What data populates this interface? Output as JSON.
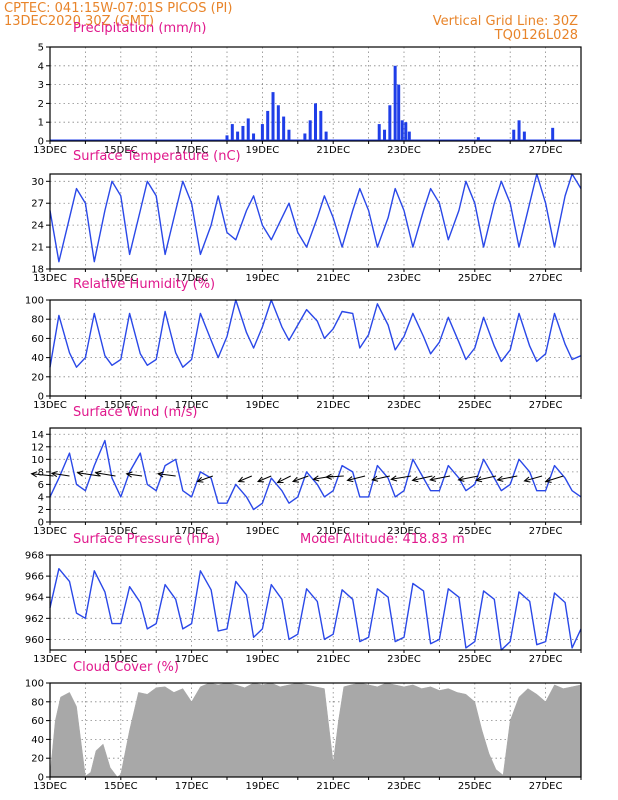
{
  "header": {
    "line1_left": "CPTEC:   041:15W-07:01S   PICOS (PI)",
    "line2_left": "13DEC2020  30Z (GMT)",
    "line1_right": "Vertical Grid Line: 30Z",
    "line2_right": "TQ0126L028"
  },
  "colors": {
    "line": "#2a48e8",
    "bar": "#1f3ee8",
    "cloud": "#a8a8a8",
    "arrow": "#000000",
    "title": "#e0188c",
    "header": "#e8842a",
    "grid": "#888888"
  },
  "x_axis": {
    "labels": [
      "13DEC",
      "15DEC",
      "17DEC",
      "19DEC",
      "21DEC",
      "23DEC",
      "25DEC",
      "27DEC"
    ],
    "range_days": [
      13,
      28
    ]
  },
  "chart_data": [
    {
      "id": "precip",
      "type": "bar",
      "title": "Precipitation (mm/h)",
      "ylim": [
        0,
        5
      ],
      "yticks": [
        0,
        1,
        2,
        3,
        4,
        5
      ],
      "x_unit": "day of December 2020",
      "x": [
        18.0,
        18.15,
        18.3,
        18.45,
        18.6,
        18.75,
        19.0,
        19.15,
        19.3,
        19.45,
        19.6,
        19.75,
        20.2,
        20.35,
        20.5,
        20.65,
        20.8,
        22.3,
        22.45,
        22.6,
        22.75,
        22.85,
        22.95,
        23.05,
        23.15,
        25.1,
        26.1,
        26.25,
        26.4,
        27.2
      ],
      "values": [
        0.3,
        0.9,
        0.5,
        0.8,
        1.2,
        0.4,
        0.9,
        1.6,
        2.6,
        1.9,
        1.3,
        0.6,
        0.4,
        1.1,
        2.0,
        1.6,
        0.5,
        0.9,
        0.6,
        1.9,
        4.0,
        3.0,
        1.1,
        1.0,
        0.5,
        0.2,
        0.6,
        1.1,
        0.5,
        0.7
      ]
    },
    {
      "id": "temp",
      "type": "line",
      "title": "Surface Temperature (nC)",
      "ylim": [
        18,
        31
      ],
      "yticks": [
        18,
        21,
        24,
        27,
        30
      ],
      "x_unit": "day of December 2020",
      "x": [
        13.0,
        13.25,
        13.55,
        13.75,
        14.0,
        14.25,
        14.55,
        14.75,
        15.0,
        15.25,
        15.55,
        15.75,
        16.0,
        16.25,
        16.55,
        16.75,
        17.0,
        17.25,
        17.55,
        17.75,
        18.0,
        18.25,
        18.55,
        18.75,
        19.0,
        19.25,
        19.55,
        19.75,
        20.0,
        20.25,
        20.55,
        20.75,
        21.0,
        21.25,
        21.55,
        21.75,
        22.0,
        22.25,
        22.55,
        22.75,
        23.0,
        23.25,
        23.55,
        23.75,
        24.0,
        24.25,
        24.55,
        24.75,
        25.0,
        25.25,
        25.55,
        25.75,
        26.0,
        26.25,
        26.55,
        26.75,
        27.0,
        27.25,
        27.55,
        27.75,
        28.0
      ],
      "values": [
        26,
        19,
        25,
        29,
        27,
        19,
        26,
        30,
        28,
        20,
        26,
        30,
        28,
        20,
        26,
        30,
        27,
        20,
        24,
        28,
        23,
        22,
        26,
        28,
        24,
        22,
        25,
        27,
        23,
        21,
        25,
        28,
        25,
        21,
        26,
        29,
        26,
        21,
        25,
        29,
        26,
        21,
        26,
        29,
        27,
        22,
        26,
        30,
        27,
        21,
        27,
        30,
        27,
        21,
        27,
        31,
        27,
        21,
        28,
        31,
        29
      ]
    },
    {
      "id": "rh",
      "type": "line",
      "title": "Relative Humidity (%)",
      "ylim": [
        0,
        100
      ],
      "yticks": [
        0,
        20,
        40,
        60,
        80,
        100
      ],
      "x_unit": "day of December 2020",
      "x": [
        13.0,
        13.25,
        13.55,
        13.75,
        14.0,
        14.25,
        14.55,
        14.75,
        15.0,
        15.25,
        15.55,
        15.75,
        16.0,
        16.25,
        16.55,
        16.75,
        17.0,
        17.25,
        17.55,
        17.75,
        18.0,
        18.25,
        18.55,
        18.75,
        19.0,
        19.25,
        19.55,
        19.75,
        20.0,
        20.25,
        20.55,
        20.75,
        21.0,
        21.25,
        21.55,
        21.75,
        22.0,
        22.25,
        22.55,
        22.75,
        23.0,
        23.25,
        23.55,
        23.75,
        24.0,
        24.25,
        24.55,
        24.75,
        25.0,
        25.25,
        25.55,
        25.75,
        26.0,
        26.25,
        26.55,
        26.75,
        27.0,
        27.25,
        27.55,
        27.75,
        28.0
      ],
      "values": [
        30,
        84,
        45,
        30,
        40,
        86,
        42,
        32,
        38,
        86,
        44,
        32,
        38,
        88,
        45,
        30,
        38,
        86,
        58,
        40,
        62,
        100,
        66,
        50,
        72,
        100,
        72,
        58,
        74,
        90,
        78,
        60,
        70,
        88,
        86,
        50,
        64,
        96,
        74,
        48,
        62,
        86,
        62,
        44,
        56,
        82,
        56,
        38,
        50,
        82,
        52,
        36,
        48,
        86,
        52,
        36,
        44,
        86,
        54,
        38,
        42
      ]
    },
    {
      "id": "wind",
      "type": "line",
      "title": "Surface Wind (m/s)",
      "ylim": [
        0,
        15
      ],
      "yticks": [
        0,
        2,
        4,
        6,
        8,
        10,
        12,
        14
      ],
      "x_unit": "day of December 2020",
      "x": [
        13.0,
        13.25,
        13.55,
        13.75,
        14.0,
        14.25,
        14.55,
        14.75,
        15.0,
        15.25,
        15.55,
        15.75,
        16.0,
        16.25,
        16.55,
        16.75,
        17.0,
        17.25,
        17.55,
        17.75,
        18.0,
        18.25,
        18.55,
        18.75,
        19.0,
        19.25,
        19.55,
        19.75,
        20.0,
        20.25,
        20.55,
        20.75,
        21.0,
        21.25,
        21.55,
        21.75,
        22.0,
        22.25,
        22.55,
        22.75,
        23.0,
        23.25,
        23.55,
        23.75,
        24.0,
        24.25,
        24.55,
        24.75,
        25.0,
        25.25,
        25.55,
        25.75,
        26.0,
        26.25,
        26.55,
        26.75,
        27.0,
        27.25,
        27.55,
        27.75,
        28.0
      ],
      "values": [
        4,
        7,
        11,
        6,
        5,
        9,
        13,
        7,
        4,
        8,
        11,
        6,
        5,
        9,
        10,
        5,
        4,
        8,
        7,
        3,
        3,
        6,
        4,
        2,
        3,
        7,
        5,
        3,
        4,
        8,
        6,
        4,
        5,
        9,
        8,
        4,
        4,
        9,
        7,
        4,
        5,
        10,
        7,
        5,
        5,
        9,
        7,
        5,
        6,
        10,
        7,
        5,
        6,
        10,
        8,
        5,
        5,
        9,
        7,
        5,
        4
      ],
      "vectors": {
        "x": [
          13.1,
          13.55,
          14.4,
          14.85,
          15.6,
          16.55,
          17.6,
          18.7,
          19.25,
          19.8,
          20.3,
          21.0,
          21.3,
          21.9,
          22.6,
          23.2,
          23.8,
          24.3,
          25.1,
          25.6,
          26.2,
          26.9,
          27.5
        ],
        "u": [
          -1.0,
          -0.8,
          -1.0,
          -0.9,
          -0.7,
          -0.8,
          -0.7,
          -0.6,
          -0.6,
          -0.6,
          -0.7,
          -0.9,
          -0.8,
          -0.8,
          -0.8,
          -0.9,
          -0.9,
          -0.9,
          -0.9,
          -0.9,
          -0.9,
          -0.8,
          -0.8
        ],
        "v": [
          0.2,
          0.25,
          0.3,
          0.3,
          0.2,
          0.2,
          -0.5,
          -0.5,
          -0.5,
          -0.6,
          -0.5,
          -0.3,
          -0.1,
          -0.4,
          -0.35,
          -0.3,
          -0.4,
          -0.35,
          -0.35,
          -0.4,
          -0.35,
          -0.45,
          -0.5
        ]
      }
    },
    {
      "id": "press",
      "type": "line",
      "title": "Surface Pressure (hPa)",
      "annotation": "Model Altitude: 418.83 m",
      "ylim": [
        959,
        968
      ],
      "yticks": [
        960,
        962,
        964,
        966,
        968
      ],
      "x_unit": "day of December 2020",
      "x": [
        13.0,
        13.25,
        13.55,
        13.75,
        14.0,
        14.25,
        14.55,
        14.75,
        15.0,
        15.25,
        15.55,
        15.75,
        16.0,
        16.25,
        16.55,
        16.75,
        17.0,
        17.25,
        17.55,
        17.75,
        18.0,
        18.25,
        18.55,
        18.75,
        19.0,
        19.25,
        19.55,
        19.75,
        20.0,
        20.25,
        20.55,
        20.75,
        21.0,
        21.25,
        21.55,
        21.75,
        22.0,
        22.25,
        22.55,
        22.75,
        23.0,
        23.25,
        23.55,
        23.75,
        24.0,
        24.25,
        24.55,
        24.75,
        25.0,
        25.25,
        25.55,
        25.75,
        26.0,
        26.25,
        26.55,
        26.75,
        27.0,
        27.25,
        27.55,
        27.75,
        28.0
      ],
      "values": [
        963,
        966.7,
        965.5,
        962.5,
        962,
        966.5,
        964.5,
        961.5,
        961.5,
        965,
        963.5,
        961,
        961.5,
        965.2,
        963.8,
        961,
        961.5,
        966.5,
        964.7,
        960.8,
        961,
        965.5,
        964.2,
        960.2,
        961,
        965.2,
        963.8,
        960,
        960.5,
        964.8,
        963.6,
        960,
        960.5,
        964.7,
        963.8,
        959.8,
        960.2,
        964.8,
        964,
        959.8,
        960.2,
        965.3,
        964.6,
        959.6,
        960,
        964.8,
        964,
        959.2,
        959.8,
        964.6,
        963.8,
        959,
        959.8,
        964.5,
        963.6,
        959.5,
        959.8,
        964.4,
        963.5,
        959.2,
        961
      ]
    },
    {
      "id": "cloud",
      "type": "area",
      "title": "Cloud Cover (%)",
      "ylim": [
        0,
        100
      ],
      "yticks": [
        0,
        20,
        40,
        60,
        80,
        100
      ],
      "x_unit": "day of December 2020",
      "x": [
        13.0,
        13.15,
        13.3,
        13.55,
        13.75,
        13.9,
        14.0,
        14.15,
        14.3,
        14.5,
        14.7,
        14.9,
        15.0,
        15.25,
        15.5,
        15.75,
        16.0,
        16.25,
        16.5,
        16.75,
        17.0,
        17.25,
        17.5,
        17.75,
        18.0,
        18.25,
        18.5,
        18.75,
        19.0,
        19.25,
        19.5,
        19.75,
        20.0,
        20.25,
        20.5,
        20.75,
        21.0,
        21.15,
        21.3,
        21.5,
        21.75,
        22.0,
        22.25,
        22.5,
        22.75,
        23.0,
        23.25,
        23.5,
        23.75,
        24.0,
        24.25,
        24.5,
        24.75,
        25.0,
        25.2,
        25.4,
        25.6,
        25.8,
        26.0,
        26.25,
        26.5,
        26.75,
        27.0,
        27.25,
        27.5,
        27.75,
        28.0
      ],
      "values": [
        2,
        60,
        85,
        90,
        75,
        30,
        1,
        5,
        28,
        35,
        10,
        0,
        3,
        50,
        90,
        88,
        95,
        96,
        90,
        94,
        80,
        96,
        100,
        98,
        100,
        98,
        95,
        100,
        98,
        100,
        96,
        98,
        100,
        98,
        96,
        94,
        15,
        60,
        96,
        98,
        100,
        98,
        96,
        100,
        98,
        96,
        98,
        94,
        96,
        92,
        94,
        90,
        88,
        80,
        50,
        25,
        8,
        2,
        60,
        85,
        94,
        88,
        80,
        98,
        94,
        96,
        98
      ]
    }
  ]
}
